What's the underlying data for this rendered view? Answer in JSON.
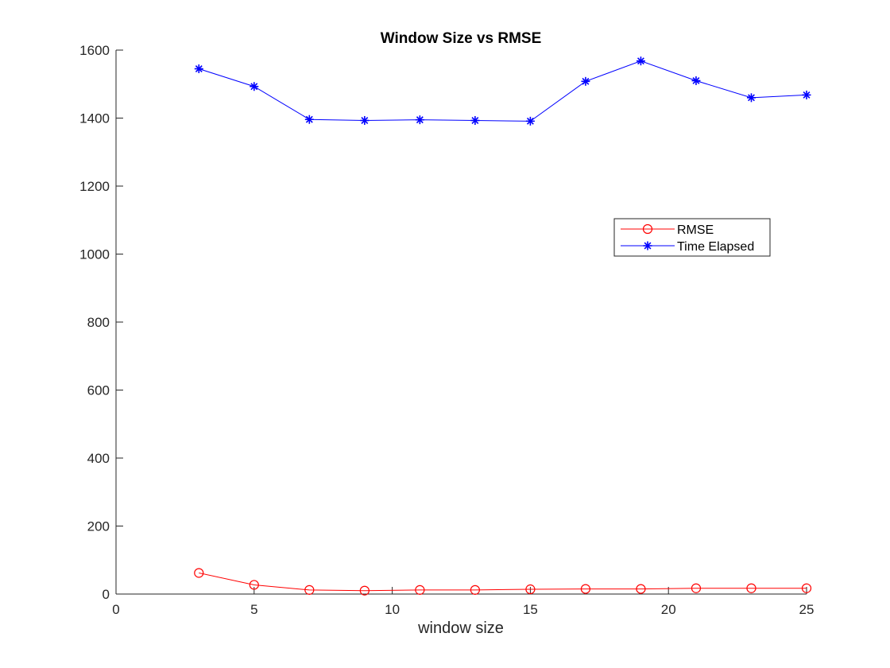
{
  "chart_data": {
    "type": "line",
    "title": "Window Size vs RMSE",
    "xlabel": "window size",
    "ylabel": "",
    "xlim": [
      0,
      25
    ],
    "ylim": [
      0,
      1600
    ],
    "xticks": [
      0,
      5,
      10,
      15,
      20,
      25
    ],
    "yticks": [
      0,
      200,
      400,
      600,
      800,
      1000,
      1200,
      1400,
      1600
    ],
    "x": [
      3,
      5,
      7,
      9,
      11,
      13,
      15,
      17,
      19,
      21,
      23,
      25
    ],
    "series": [
      {
        "name": "RMSE",
        "color": "#ff0000",
        "marker": "circle",
        "values": [
          62,
          27,
          12,
          10,
          12,
          12,
          14,
          15,
          15,
          17,
          17,
          17
        ]
      },
      {
        "name": "Time Elapsed",
        "color": "#0000ff",
        "marker": "asterisk",
        "values": [
          1545,
          1493,
          1396,
          1393,
          1395,
          1393,
          1391,
          1508,
          1568,
          1510,
          1460,
          1468
        ]
      }
    ],
    "grid": false,
    "box": false,
    "legend_position": "inside-right"
  }
}
